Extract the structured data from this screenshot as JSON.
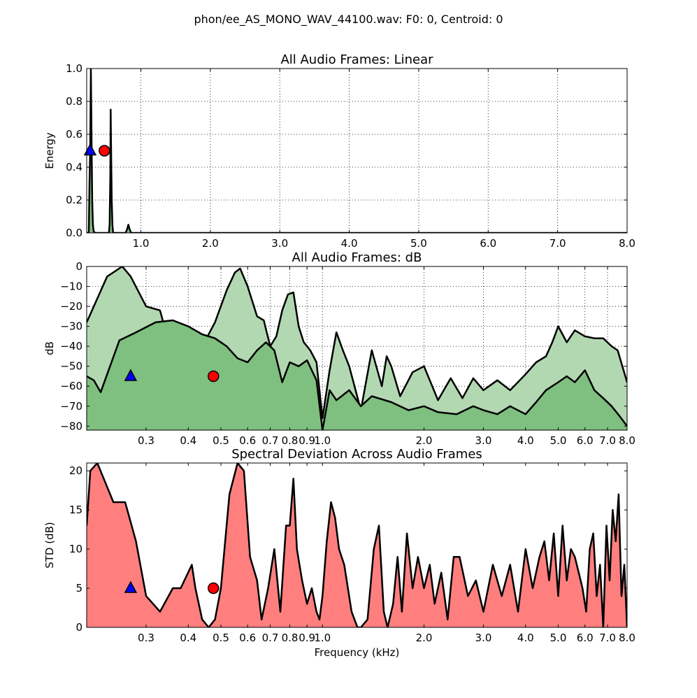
{
  "figure": {
    "suptitle": "phon/ee_AS_MONO_WAV_44100.wav: F0: 0, Centroid: 0"
  },
  "chart_data": [
    {
      "type": "area",
      "title": "All Audio Frames: Linear",
      "xlabel": "",
      "ylabel": "Energy",
      "xscale": "linear",
      "xlim": [
        0.22,
        8.0
      ],
      "ylim": [
        0.0,
        1.0
      ],
      "grid": true,
      "xticks": [
        1.0,
        2.0,
        3.0,
        4.0,
        5.0,
        6.0,
        7.0,
        8.0
      ],
      "xtick_labels": [
        "1.0",
        "2.0",
        "3.0",
        "4.0",
        "5.0",
        "6.0",
        "7.0",
        "8.0"
      ],
      "yticks": [
        0.0,
        0.2,
        0.4,
        0.6,
        0.8,
        1.0
      ],
      "ytick_labels": [
        "0.0",
        "0.2",
        "0.4",
        "0.6",
        "0.8",
        "1.0"
      ],
      "fill_color": "#7fbf7f",
      "series": [
        {
          "x": [
            0.22,
            0.25,
            0.26,
            0.27,
            0.28,
            0.29,
            0.3,
            0.31,
            0.32,
            0.34,
            0.36,
            0.4,
            0.44,
            0.48,
            0.52,
            0.54,
            0.55,
            0.56,
            0.565,
            0.57,
            0.58,
            0.59,
            0.6,
            0.62,
            0.7,
            0.78,
            0.8,
            0.82,
            0.84,
            0.86,
            0.9,
            1.0,
            2.0,
            3.0,
            4.0,
            5.0,
            6.0,
            7.0,
            8.0
          ],
          "y": [
            0.0,
            0.0,
            0.3,
            0.5,
            1.0,
            0.55,
            0.2,
            0.05,
            0.01,
            0.0,
            0.0,
            0.0,
            0.0,
            0.0,
            0.0,
            0.0,
            0.05,
            0.35,
            0.75,
            0.55,
            0.2,
            0.05,
            0.0,
            0.0,
            0.0,
            0.0,
            0.02,
            0.05,
            0.02,
            0.0,
            0.0,
            0.0,
            0.0,
            0.0,
            0.0,
            0.0,
            0.0,
            0.0,
            0.0
          ]
        }
      ],
      "markers": [
        {
          "shape": "triangle",
          "color": "#0000ff",
          "x": 0.27,
          "y": 0.5
        },
        {
          "shape": "circle",
          "color": "#ff0000",
          "x": 0.475,
          "y": 0.5
        }
      ]
    },
    {
      "type": "area",
      "title": "All Audio Frames: dB",
      "xlabel": "",
      "ylabel": "dB",
      "xscale": "log",
      "xlim": [
        0.2,
        8.0
      ],
      "ylim": [
        -82,
        0
      ],
      "grid": true,
      "xticks": [
        0.3,
        0.4,
        0.5,
        0.6,
        0.7,
        0.8,
        0.9,
        1.0,
        2.0,
        3.0,
        4.0,
        5.0,
        6.0,
        7.0,
        8.0
      ],
      "xtick_labels": [
        "0.3",
        "0.4",
        "0.5",
        "0.6",
        "0.7",
        "0.8",
        "0.9",
        "1.0",
        "2.0",
        "3.0",
        "4.0",
        "5.0",
        "6.0",
        "7.0",
        "8.0"
      ],
      "yticks": [
        0,
        -10,
        -20,
        -30,
        -40,
        -50,
        -60,
        -70,
        -80
      ],
      "ytick_labels": [
        "0",
        "−10",
        "−20",
        "−30",
        "−40",
        "−50",
        "−60",
        "−70",
        "−80"
      ],
      "series": [
        {
          "name": "",
          "fill_color": "#b2d8b2",
          "x": [
            0.2,
            0.23,
            0.255,
            0.27,
            0.3,
            0.33,
            0.35,
            0.38,
            0.42,
            0.45,
            0.48,
            0.52,
            0.55,
            0.57,
            0.6,
            0.64,
            0.67,
            0.7,
            0.73,
            0.76,
            0.79,
            0.82,
            0.85,
            0.88,
            0.92,
            0.96,
            1.0,
            1.05,
            1.1,
            1.15,
            1.2,
            1.3,
            1.4,
            1.5,
            1.55,
            1.6,
            1.7,
            1.85,
            2.0,
            2.2,
            2.4,
            2.6,
            2.8,
            3.0,
            3.3,
            3.6,
            4.0,
            4.3,
            4.6,
            4.8,
            5.0,
            5.3,
            5.6,
            6.0,
            6.4,
            6.8,
            7.2,
            7.5,
            8.0
          ],
          "y": [
            -28,
            -5,
            0,
            -5,
            -20,
            -22,
            -38,
            -37,
            -48,
            -37,
            -28,
            -12,
            -3,
            -1,
            -10,
            -25,
            -27,
            -40,
            -35,
            -22,
            -14,
            -13,
            -30,
            -38,
            -42,
            -48,
            -76,
            -52,
            -33,
            -42,
            -50,
            -72,
            -42,
            -60,
            -45,
            -50,
            -65,
            -53,
            -50,
            -67,
            -56,
            -66,
            -56,
            -62,
            -57,
            -62,
            -54,
            -48,
            -45,
            -38,
            -30,
            -38,
            -32,
            -35,
            -36,
            -36,
            -40,
            -42,
            -58
          ]
        },
        {
          "name": "",
          "fill_color": "#7fbf7f",
          "x": [
            0.2,
            0.21,
            0.22,
            0.25,
            0.28,
            0.32,
            0.36,
            0.4,
            0.44,
            0.48,
            0.52,
            0.56,
            0.6,
            0.64,
            0.68,
            0.72,
            0.76,
            0.8,
            0.85,
            0.9,
            0.96,
            1.0,
            1.05,
            1.1,
            1.2,
            1.3,
            1.4,
            1.6,
            1.8,
            2.0,
            2.2,
            2.5,
            2.8,
            3.0,
            3.3,
            3.6,
            4.0,
            4.3,
            4.6,
            5.0,
            5.3,
            5.6,
            6.0,
            6.4,
            6.8,
            7.2,
            7.6,
            8.0
          ],
          "y": [
            -55,
            -57,
            -63,
            -37,
            -33,
            -28,
            -27,
            -30,
            -34,
            -36,
            -40,
            -46,
            -48,
            -42,
            -38,
            -42,
            -58,
            -48,
            -50,
            -47,
            -57,
            -82,
            -62,
            -67,
            -62,
            -70,
            -65,
            -68,
            -72,
            -70,
            -73,
            -74,
            -70,
            -72,
            -74,
            -70,
            -74,
            -68,
            -62,
            -58,
            -55,
            -58,
            -52,
            -62,
            -66,
            -70,
            -75,
            -80
          ]
        }
      ],
      "markers": [
        {
          "shape": "triangle",
          "color": "#0000ff",
          "x": 0.27,
          "y": -55
        },
        {
          "shape": "circle",
          "color": "#ff0000",
          "x": 0.475,
          "y": -55
        }
      ]
    },
    {
      "type": "area",
      "title": "Spectral Deviation Across Audio Frames",
      "xlabel": "Frequency (kHz)",
      "ylabel": "STD (dB)",
      "xscale": "log",
      "xlim": [
        0.2,
        8.0
      ],
      "ylim": [
        0,
        21
      ],
      "grid": false,
      "xticks": [
        0.3,
        0.4,
        0.5,
        0.6,
        0.7,
        0.8,
        0.9,
        1.0,
        2.0,
        3.0,
        4.0,
        5.0,
        6.0,
        7.0,
        8.0
      ],
      "xtick_labels": [
        "0.3",
        "0.4",
        "0.5",
        "0.6",
        "0.7",
        "0.8",
        "0.9",
        "1.0",
        "2.0",
        "3.0",
        "4.0",
        "5.0",
        "6.0",
        "7.0",
        "8.0"
      ],
      "yticks": [
        0,
        5,
        10,
        15,
        20
      ],
      "ytick_labels": [
        "0",
        "5",
        "10",
        "15",
        "20"
      ],
      "fill_color": "#ff7f7f",
      "series": [
        {
          "x": [
            0.2,
            0.205,
            0.215,
            0.24,
            0.26,
            0.28,
            0.3,
            0.33,
            0.36,
            0.38,
            0.41,
            0.42,
            0.44,
            0.46,
            0.48,
            0.5,
            0.53,
            0.56,
            0.585,
            0.61,
            0.64,
            0.66,
            0.69,
            0.72,
            0.75,
            0.78,
            0.8,
            0.82,
            0.84,
            0.87,
            0.9,
            0.93,
            0.96,
            0.98,
            1.0,
            1.03,
            1.06,
            1.09,
            1.12,
            1.16,
            1.22,
            1.27,
            1.3,
            1.36,
            1.42,
            1.47,
            1.52,
            1.56,
            1.62,
            1.67,
            1.72,
            1.78,
            1.85,
            1.92,
            2.0,
            2.08,
            2.15,
            2.25,
            2.35,
            2.45,
            2.55,
            2.7,
            2.85,
            3.0,
            3.2,
            3.4,
            3.6,
            3.8,
            4.0,
            4.2,
            4.4,
            4.55,
            4.7,
            4.85,
            5.0,
            5.15,
            5.3,
            5.45,
            5.6,
            5.75,
            5.9,
            6.05,
            6.2,
            6.35,
            6.5,
            6.65,
            6.8,
            6.95,
            7.1,
            7.25,
            7.4,
            7.55,
            7.7,
            7.85,
            8.0
          ],
          "y": [
            13,
            20,
            21,
            16,
            16,
            11,
            4,
            2,
            5,
            5,
            8,
            5,
            1,
            0,
            1,
            5,
            17,
            21,
            20,
            9,
            6,
            1,
            5,
            10,
            2,
            13,
            13,
            19,
            10,
            6,
            3,
            5,
            2,
            1,
            4,
            11,
            16,
            14,
            10,
            8,
            2,
            0,
            0,
            1,
            10,
            13,
            2,
            0,
            3,
            9,
            2,
            12,
            5,
            9,
            5,
            8,
            3,
            7,
            1,
            9,
            9,
            4,
            6,
            2,
            8,
            4,
            8,
            2,
            10,
            5,
            9,
            11,
            6,
            12,
            4,
            13,
            6,
            10,
            9,
            7,
            5,
            2,
            10,
            12,
            4,
            8,
            0,
            13,
            6,
            15,
            11,
            17,
            4,
            8,
            0
          ]
        }
      ],
      "markers": [
        {
          "shape": "triangle",
          "color": "#0000ff",
          "x": 0.27,
          "y": 5
        },
        {
          "shape": "circle",
          "color": "#ff0000",
          "x": 0.475,
          "y": 5
        }
      ]
    }
  ]
}
